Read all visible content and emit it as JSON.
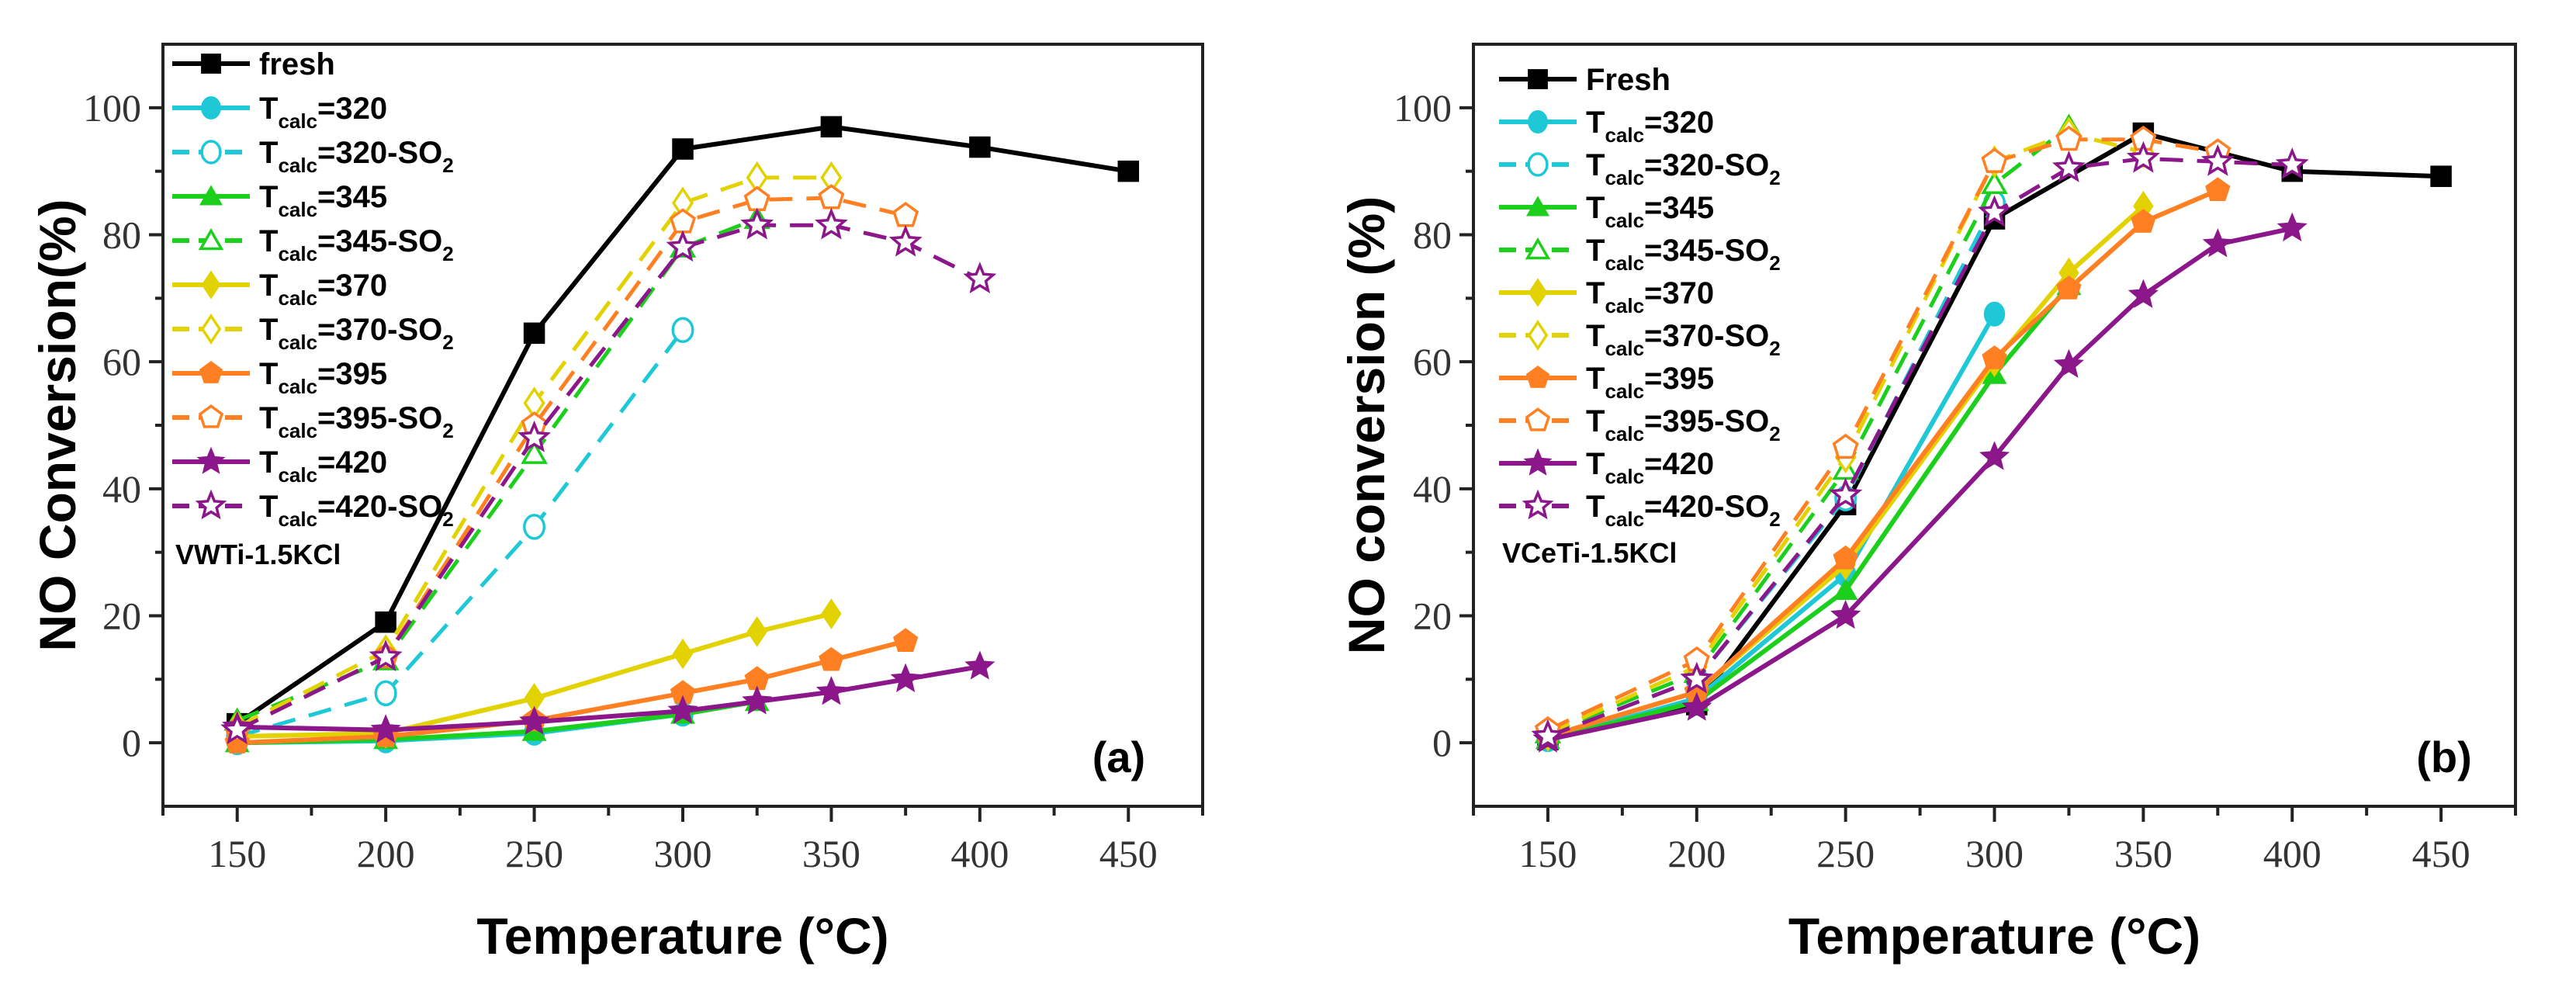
{
  "chart_data": [
    {
      "type": "line",
      "panel_label": "(a)",
      "sample_label": "VWTi-1.5KCl",
      "xlabel": "Temperature (°C)",
      "ylabel": "NO Conversion(%)",
      "xlim": [
        125,
        475
      ],
      "ylim": [
        -10,
        110
      ],
      "xticks": [
        150,
        200,
        250,
        300,
        350,
        400,
        450
      ],
      "yticks": [
        0,
        20,
        40,
        60,
        80,
        100
      ],
      "legend_position": "top-left",
      "series": [
        {
          "name": "fresh",
          "label": {
            "prefix": "fresh",
            "sub": "",
            "suffix": "",
            "suffix_sub": ""
          },
          "color": "#000000",
          "marker": "square",
          "filled": true,
          "dashed": false,
          "x": [
            150,
            200,
            250,
            300,
            350,
            400,
            450
          ],
          "y": [
            3,
            19,
            64.5,
            93.5,
            97,
            93.8,
            90
          ]
        },
        {
          "name": "Tcalc=320",
          "label": {
            "prefix": "T",
            "sub": "calc",
            "suffix": "=320",
            "suffix_sub": ""
          },
          "color": "#1ec8d6",
          "marker": "circle",
          "filled": true,
          "dashed": false,
          "x": [
            150,
            200,
            250,
            300
          ],
          "y": [
            0,
            0.3,
            1.5,
            4.5
          ]
        },
        {
          "name": "Tcalc=320-SO2",
          "label": {
            "prefix": "T",
            "sub": "calc",
            "suffix": "=320-SO",
            "suffix_sub": "2"
          },
          "color": "#1ec8d6",
          "marker": "circle",
          "filled": false,
          "dashed": true,
          "x": [
            150,
            200,
            250,
            300
          ],
          "y": [
            1,
            7.8,
            34,
            65
          ]
        },
        {
          "name": "Tcalc=345",
          "label": {
            "prefix": "T",
            "sub": "calc",
            "suffix": "=345",
            "suffix_sub": ""
          },
          "color": "#1ccf1c",
          "marker": "triangle",
          "filled": true,
          "dashed": false,
          "x": [
            150,
            200,
            250,
            300,
            325
          ],
          "y": [
            0,
            0.5,
            1.8,
            4.5,
            6.5
          ]
        },
        {
          "name": "Tcalc=345-SO2",
          "label": {
            "prefix": "T",
            "sub": "calc",
            "suffix": "=345-SO",
            "suffix_sub": "2"
          },
          "color": "#1ccf1c",
          "marker": "triangle",
          "filled": false,
          "dashed": true,
          "x": [
            150,
            200,
            250,
            300,
            325
          ],
          "y": [
            3.5,
            13,
            45.5,
            78,
            82.5
          ]
        },
        {
          "name": "Tcalc=370",
          "label": {
            "prefix": "T",
            "sub": "calc",
            "suffix": "=370",
            "suffix_sub": ""
          },
          "color": "#e2d200",
          "marker": "diamond",
          "filled": true,
          "dashed": false,
          "x": [
            150,
            200,
            250,
            300,
            325,
            350
          ],
          "y": [
            1,
            1.5,
            7,
            14,
            17.5,
            20.3
          ]
        },
        {
          "name": "Tcalc=370-SO2",
          "label": {
            "prefix": "T",
            "sub": "calc",
            "suffix": "=370-SO",
            "suffix_sub": "2"
          },
          "color": "#e2d200",
          "marker": "diamond",
          "filled": false,
          "dashed": true,
          "x": [
            150,
            200,
            250,
            300,
            325,
            350
          ],
          "y": [
            2.5,
            14.5,
            53.5,
            85,
            89,
            89
          ]
        },
        {
          "name": "Tcalc=395",
          "label": {
            "prefix": "T",
            "sub": "calc",
            "suffix": "=395",
            "suffix_sub": ""
          },
          "color": "#ff8022",
          "marker": "pentagon",
          "filled": true,
          "dashed": false,
          "x": [
            150,
            200,
            250,
            300,
            325,
            350,
            375
          ],
          "y": [
            0,
            1,
            3.5,
            7.8,
            10,
            13,
            16
          ]
        },
        {
          "name": "Tcalc=395-SO2",
          "label": {
            "prefix": "T",
            "sub": "calc",
            "suffix": "=395-SO",
            "suffix_sub": "2"
          },
          "color": "#ff8022",
          "marker": "pentagon",
          "filled": false,
          "dashed": true,
          "x": [
            150,
            200,
            250,
            300,
            325,
            350,
            375
          ],
          "y": [
            2,
            13.5,
            50,
            82,
            85.5,
            85.8,
            83
          ]
        },
        {
          "name": "Tcalc=420",
          "label": {
            "prefix": "T",
            "sub": "calc",
            "suffix": "=420",
            "suffix_sub": ""
          },
          "color": "#8b178b",
          "marker": "star",
          "filled": true,
          "dashed": false,
          "x": [
            150,
            200,
            250,
            300,
            325,
            350,
            375,
            400
          ],
          "y": [
            2.5,
            2,
            3.3,
            5,
            6.5,
            8,
            10,
            12
          ]
        },
        {
          "name": "Tcalc=420-SO2",
          "label": {
            "prefix": "T",
            "sub": "calc",
            "suffix": "=420-SO",
            "suffix_sub": "2"
          },
          "color": "#8b178b",
          "marker": "star",
          "filled": false,
          "dashed": true,
          "x": [
            150,
            200,
            250,
            300,
            325,
            350,
            375,
            400
          ],
          "y": [
            2,
            13.5,
            48,
            78,
            81.5,
            81.5,
            78.8,
            73
          ]
        }
      ]
    },
    {
      "type": "line",
      "panel_label": "(b)",
      "sample_label": "VCeTi-1.5KCl",
      "xlabel": "Temperature (°C)",
      "ylabel": "NO conversion (%)",
      "xlim": [
        125,
        475
      ],
      "ylim": [
        -10,
        110
      ],
      "xticks": [
        150,
        200,
        250,
        300,
        350,
        400,
        450
      ],
      "yticks": [
        0,
        20,
        40,
        60,
        80,
        100
      ],
      "legend_position": "top-left",
      "series": [
        {
          "name": "Fresh",
          "label": {
            "prefix": "Fresh",
            "sub": "",
            "suffix": "",
            "suffix_sub": ""
          },
          "color": "#000000",
          "marker": "square",
          "filled": true,
          "dashed": false,
          "x": [
            150,
            200,
            250,
            300,
            350,
            400,
            450
          ],
          "y": [
            0.5,
            6,
            37.5,
            82.5,
            96,
            90,
            89.2
          ]
        },
        {
          "name": "Tcalc=320",
          "label": {
            "prefix": "T",
            "sub": "calc",
            "suffix": "=320",
            "suffix_sub": ""
          },
          "color": "#1ec8d6",
          "marker": "circle",
          "filled": true,
          "dashed": false,
          "x": [
            150,
            200,
            250,
            300
          ],
          "y": [
            0.5,
            7,
            26.5,
            67.5
          ]
        },
        {
          "name": "Tcalc=320-SO2",
          "label": {
            "prefix": "T",
            "sub": "calc",
            "suffix": "=320-SO",
            "suffix_sub": "2"
          },
          "color": "#1ec8d6",
          "marker": "circle",
          "filled": false,
          "dashed": true,
          "x": [
            150,
            200,
            250,
            300
          ],
          "y": [
            1,
            10,
            38.5,
            85
          ]
        },
        {
          "name": "Tcalc=345",
          "label": {
            "prefix": "T",
            "sub": "calc",
            "suffix": "=345",
            "suffix_sub": ""
          },
          "color": "#1ccf1c",
          "marker": "triangle",
          "filled": true,
          "dashed": false,
          "x": [
            150,
            200,
            250,
            300,
            325
          ],
          "y": [
            0.5,
            6.5,
            24,
            58,
            72
          ]
        },
        {
          "name": "Tcalc=345-SO2",
          "label": {
            "prefix": "T",
            "sub": "calc",
            "suffix": "=345-SO",
            "suffix_sub": "2"
          },
          "color": "#1ccf1c",
          "marker": "triangle",
          "filled": false,
          "dashed": true,
          "x": [
            150,
            200,
            250,
            300,
            325
          ],
          "y": [
            1.5,
            11,
            43,
            88,
            97
          ]
        },
        {
          "name": "Tcalc=370",
          "label": {
            "prefix": "T",
            "sub": "calc",
            "suffix": "=370",
            "suffix_sub": ""
          },
          "color": "#e2d200",
          "marker": "diamond",
          "filled": true,
          "dashed": false,
          "x": [
            150,
            200,
            250,
            300,
            325,
            350
          ],
          "y": [
            1,
            8,
            28,
            60,
            74,
            84.5
          ]
        },
        {
          "name": "Tcalc=370-SO2",
          "label": {
            "prefix": "T",
            "sub": "calc",
            "suffix": "=370-SO",
            "suffix_sub": "2"
          },
          "color": "#e2d200",
          "marker": "diamond",
          "filled": false,
          "dashed": true,
          "x": [
            150,
            200,
            250,
            300,
            325,
            350
          ],
          "y": [
            1.5,
            12,
            45,
            91.5,
            96,
            93
          ]
        },
        {
          "name": "Tcalc=395",
          "label": {
            "prefix": "T",
            "sub": "calc",
            "suffix": "=395",
            "suffix_sub": ""
          },
          "color": "#ff8022",
          "marker": "pentagon",
          "filled": true,
          "dashed": false,
          "x": [
            150,
            200,
            250,
            300,
            325,
            350,
            375
          ],
          "y": [
            1,
            8,
            29,
            60.5,
            71.5,
            82,
            87
          ]
        },
        {
          "name": "Tcalc=395-SO2",
          "label": {
            "prefix": "T",
            "sub": "calc",
            "suffix": "=395-SO",
            "suffix_sub": "2"
          },
          "color": "#ff8022",
          "marker": "pentagon",
          "filled": false,
          "dashed": true,
          "x": [
            150,
            200,
            250,
            300,
            325,
            350,
            375
          ],
          "y": [
            2,
            13,
            46.5,
            91.5,
            95,
            95,
            93
          ]
        },
        {
          "name": "Tcalc=420",
          "label": {
            "prefix": "T",
            "sub": "calc",
            "suffix": "=420",
            "suffix_sub": ""
          },
          "color": "#8b178b",
          "marker": "star",
          "filled": true,
          "dashed": false,
          "x": [
            150,
            200,
            250,
            300,
            325,
            350,
            375,
            400
          ],
          "y": [
            0.5,
            5.5,
            20,
            45,
            59.5,
            70.5,
            78.5,
            81
          ]
        },
        {
          "name": "Tcalc=420-SO2",
          "label": {
            "prefix": "T",
            "sub": "calc",
            "suffix": "=420-SO",
            "suffix_sub": "2"
          },
          "color": "#8b178b",
          "marker": "star",
          "filled": false,
          "dashed": true,
          "x": [
            150,
            200,
            250,
            300,
            325,
            350,
            375,
            400
          ],
          "y": [
            1,
            10,
            39,
            83.5,
            90.5,
            92,
            91.5,
            91
          ]
        }
      ]
    }
  ]
}
